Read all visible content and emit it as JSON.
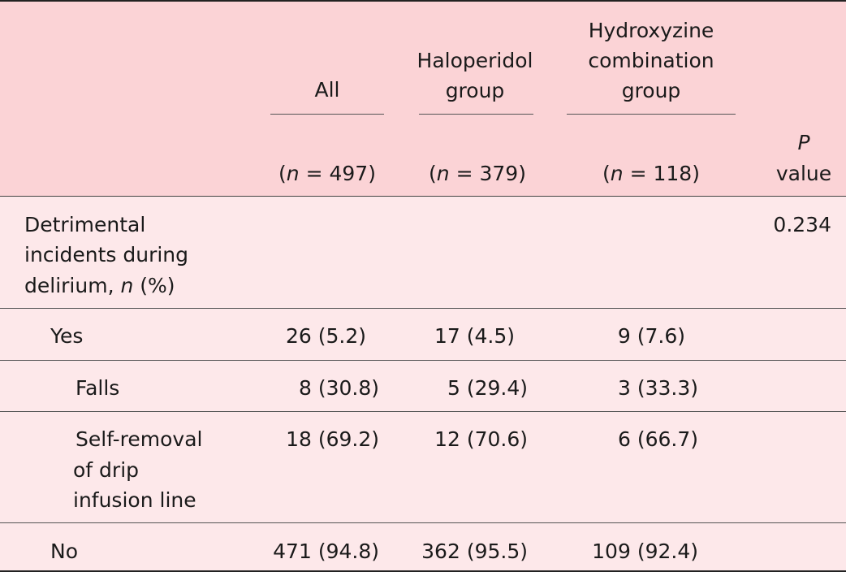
{
  "header": {
    "col_all": "All",
    "col_haloperidol": [
      "Haloperidol",
      "group"
    ],
    "col_hydroxyzine": [
      "Hydroxyzine",
      "combination",
      "group"
    ],
    "n_all": "(n = 497)",
    "n_haloperidol": "(n = 379)",
    "n_hydroxyzine": "(n = 118)",
    "pvalue": [
      "P",
      "value"
    ]
  },
  "rows": [
    {
      "label": [
        "Detrimental",
        "incidents during",
        "delirium, n (%)"
      ],
      "all": "",
      "haloperidol": "",
      "hydroxyzine": "",
      "pvalue": "0.234"
    },
    {
      "label": [
        "Yes"
      ],
      "all": "26 (5.2)",
      "haloperidol": "17 (4.5)",
      "hydroxyzine": "9 (7.6)",
      "pvalue": ""
    },
    {
      "label": [
        "Falls"
      ],
      "all": "8 (30.8)",
      "haloperidol": "5 (29.4)",
      "hydroxyzine": "3 (33.3)",
      "pvalue": ""
    },
    {
      "label": [
        "Self-removal",
        "of drip",
        "infusion line"
      ],
      "all": "18 (69.2)",
      "haloperidol": "12 (70.6)",
      "hydroxyzine": "6 (66.7)",
      "pvalue": ""
    },
    {
      "label": [
        "No"
      ],
      "all": "471 (94.8)",
      "haloperidol": "362 (95.5)",
      "hydroxyzine": "109 (92.4)",
      "pvalue": ""
    }
  ]
}
